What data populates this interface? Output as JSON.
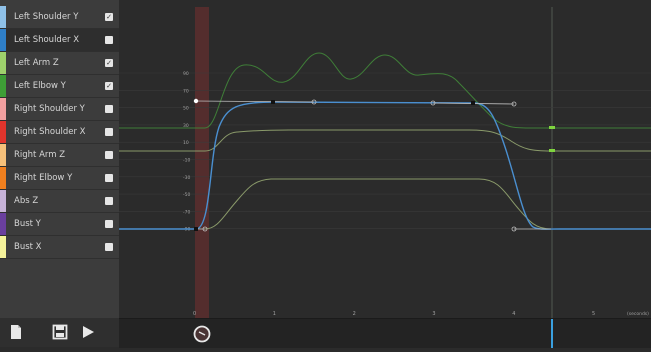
{
  "channels": [
    {
      "label": "Left Shoulder Y",
      "color": "#8fc1e8",
      "checked": true
    },
    {
      "label": "Left Shoulder X",
      "color": "#2f7fc8",
      "checked": false
    },
    {
      "label": "Left Arm Z",
      "color": "#9ed16c",
      "checked": true
    },
    {
      "label": "Left Elbow Y",
      "color": "#3e9e36",
      "checked": true
    },
    {
      "label": "Right Shoulder Y",
      "color": "#f2a0a0",
      "checked": false
    },
    {
      "label": "Right Shoulder X",
      "color": "#e0342c",
      "checked": false
    },
    {
      "label": "Right Arm Z",
      "color": "#f5c07a",
      "checked": false
    },
    {
      "label": "Right Elbow Y",
      "color": "#f07f1e",
      "checked": false
    },
    {
      "label": "Abs Z",
      "color": "#c7b3d8",
      "checked": false
    },
    {
      "label": "Bust Y",
      "color": "#6a3f9e",
      "checked": false
    },
    {
      "label": "Bust X",
      "color": "#f4f29a",
      "checked": false
    }
  ],
  "toolbar": {
    "new_icon": "document-icon",
    "save_icon": "save-icon",
    "play_icon": "play-icon"
  },
  "axis": {
    "y_ticks": [
      "90",
      "70",
      "50",
      "30",
      "10",
      "-10",
      "-30",
      "-50",
      "-70",
      "-90"
    ],
    "x_ticks": [
      "0",
      "1",
      "2",
      "3",
      "4",
      "5"
    ],
    "x_unit": "(seconds)"
  },
  "colors": {
    "grid_line": "#3a3a3a",
    "playhead": "#5c2e2e",
    "blue_curve": "#4a8fd0",
    "cursor_marker": "#3aa0e0"
  }
}
